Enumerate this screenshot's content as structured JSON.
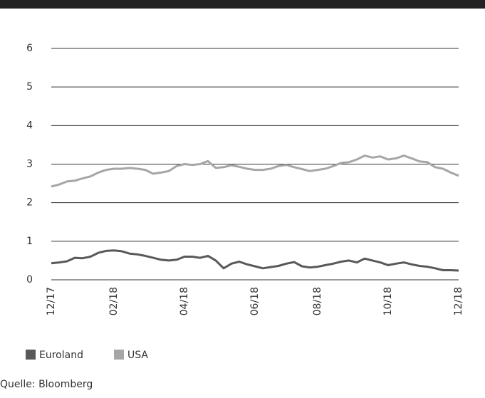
{
  "chart_data": {
    "type": "line",
    "categories": [
      "12/17",
      null,
      null,
      null,
      null,
      null,
      null,
      null,
      "02/18",
      null,
      null,
      null,
      null,
      null,
      null,
      null,
      null,
      "04/18",
      null,
      null,
      null,
      null,
      null,
      null,
      null,
      null,
      "06/18",
      null,
      null,
      null,
      null,
      null,
      null,
      null,
      "08/18",
      null,
      null,
      null,
      null,
      null,
      null,
      null,
      null,
      "10/18",
      null,
      null,
      null,
      null,
      null,
      null,
      null,
      null,
      "12/18"
    ],
    "series": [
      {
        "name": "Euroland",
        "color": "#595959",
        "values": [
          0.43,
          0.45,
          0.48,
          0.57,
          0.56,
          0.6,
          0.7,
          0.75,
          0.76,
          0.74,
          0.68,
          0.66,
          0.62,
          0.57,
          0.52,
          0.5,
          0.52,
          0.6,
          0.6,
          0.57,
          0.62,
          0.5,
          0.3,
          0.42,
          0.47,
          0.4,
          0.35,
          0.3,
          0.33,
          0.36,
          0.42,
          0.46,
          0.35,
          0.32,
          0.34,
          0.38,
          0.42,
          0.47,
          0.5,
          0.45,
          0.55,
          0.5,
          0.45,
          0.38,
          0.42,
          0.45,
          0.4,
          0.36,
          0.34,
          0.3,
          0.25,
          0.25,
          0.24
        ]
      },
      {
        "name": "USA",
        "color": "#a6a6a6",
        "values": [
          2.42,
          2.47,
          2.55,
          2.57,
          2.63,
          2.68,
          2.78,
          2.85,
          2.88,
          2.88,
          2.9,
          2.88,
          2.85,
          2.75,
          2.78,
          2.82,
          2.95,
          3.0,
          2.98,
          3.0,
          3.08,
          2.9,
          2.92,
          2.97,
          2.93,
          2.88,
          2.85,
          2.85,
          2.88,
          2.95,
          2.98,
          2.92,
          2.87,
          2.82,
          2.85,
          2.88,
          2.95,
          3.03,
          3.05,
          3.12,
          3.22,
          3.17,
          3.2,
          3.12,
          3.15,
          3.22,
          3.15,
          3.07,
          3.05,
          2.92,
          2.88,
          2.78,
          2.7
        ]
      }
    ],
    "ylim": [
      0,
      6
    ],
    "yticks": [
      0,
      1,
      2,
      3,
      4,
      5,
      6
    ],
    "grid": true,
    "source": "Quelle: Bloomberg"
  }
}
